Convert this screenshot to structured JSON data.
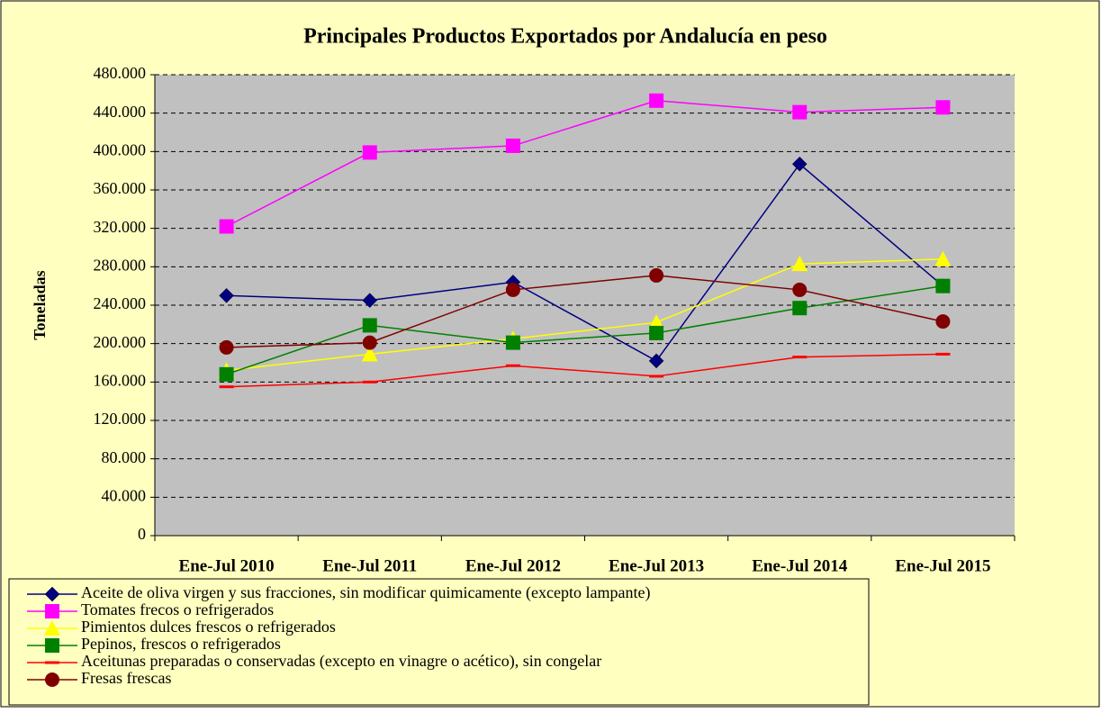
{
  "chart_data": {
    "type": "line",
    "title": "Principales Productos Exportados por Andalucía en peso",
    "y_label": "Toneladas",
    "categories": [
      "Ene-Jul 2010",
      "Ene-Jul 2011",
      "Ene-Jul 2012",
      "Ene-Jul 2013",
      "Ene-Jul 2014",
      "Ene-Jul 2015"
    ],
    "ylim": [
      0,
      480000
    ],
    "yticks": [
      0,
      {
        "value": 40000,
        "label": "40.000"
      },
      {
        "value": 80000,
        "label": "80.000"
      },
      {
        "value": 120000,
        "label": "120.000"
      },
      {
        "value": 160000,
        "label": "160.000"
      },
      {
        "value": 200000,
        "label": "200.000"
      },
      {
        "value": 240000,
        "label": "240.000"
      },
      {
        "value": 280000,
        "label": "280.000"
      },
      {
        "value": 320000,
        "label": "320.000"
      },
      {
        "value": 360000,
        "label": "360.000"
      },
      {
        "value": 400000,
        "label": "400.000"
      },
      {
        "value": 440000,
        "label": "440.000"
      },
      {
        "value": 480000,
        "label": "480.000"
      }
    ],
    "grid": true,
    "legend": "bottom",
    "series": [
      {
        "name": "Aceite de oliva virgen y sus fracciones, sin modificar quimicamente (excepto lampante)",
        "color": "#000080",
        "marker": "diamond",
        "values": [
          250000,
          245000,
          264000,
          182000,
          387000,
          260000
        ]
      },
      {
        "name": "Tomates frecos o refrigerados",
        "color": "#ff00ff",
        "marker": "square",
        "values": [
          322000,
          399000,
          406000,
          453000,
          441000,
          446000
        ]
      },
      {
        "name": "Pimientos dulces frescos o refrigerados",
        "color": "#ffff00",
        "marker": "triangle",
        "values": [
          172000,
          189000,
          205000,
          222000,
          283000,
          288000
        ]
      },
      {
        "name": "Pepinos, frescos o refrigerados",
        "color": "#008000",
        "marker": "square",
        "values": [
          168000,
          219000,
          201000,
          211000,
          237000,
          260000
        ]
      },
      {
        "name": "Aceitunas preparadas o conservadas (excepto en vinagre o acético), sin congelar",
        "color": "#ff0000",
        "marker": "dash",
        "values": [
          155000,
          160000,
          177000,
          166000,
          186000,
          189000
        ]
      },
      {
        "name": "Fresas frescas",
        "color": "#800000",
        "marker": "circle",
        "values": [
          196000,
          201000,
          256000,
          271000,
          256000,
          223000
        ]
      }
    ]
  }
}
